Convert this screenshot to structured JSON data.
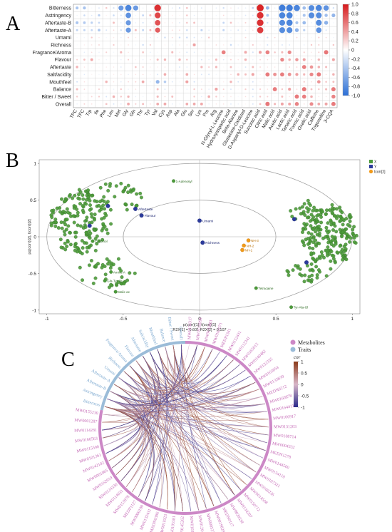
{
  "panels": {
    "a": "A",
    "b": "B",
    "c": "C"
  },
  "chart_data": [
    {
      "type": "heatmap",
      "rows": [
        "Bitterness",
        "Astringency",
        "Aftertaste-B",
        "Aftertaste-A",
        "Umami",
        "Richness",
        "Fragrance/Aroma",
        "Flavour",
        "Aftertaste",
        "Salt/acidity",
        "Mouthfeel",
        "Balance",
        "Bitter / Sweet",
        "Overall"
      ],
      "columns": [
        "TPC",
        "TFC",
        "Trp",
        "Ile",
        "Phe",
        "Leu",
        "Met",
        "Gly",
        "Gln",
        "Thr",
        "Tyr",
        "Val",
        "Cys",
        "Asp",
        "Ala",
        "Glu",
        "Ser",
        "Lys",
        "Pro",
        "Arg",
        "N-Glycyl-L-Leucine",
        "Hydroxyaspartic acid",
        "Beta-Alanine",
        "Glutamine-Oxidized",
        "D-Aspartyl-D-Leucine",
        "Succinic acid",
        "Citric acid",
        "Malic acid",
        "Acetic acid",
        "Lactic acid",
        "Tartaric acid",
        "Formic acid",
        "Oxalic acid",
        "Caffeine",
        "Trigonelline",
        "3-CQA"
      ],
      "colorbar": {
        "ticks": [
          "1.0",
          "0.8",
          "0.6",
          "0.4",
          "0.2",
          "0",
          "-0.2",
          "-0.4",
          "-0.6",
          "-0.8",
          "-1.0"
        ],
        "range": [
          -1,
          1
        ],
        "high_color": "#d7191c",
        "mid_color": "#ffffff",
        "low_color": "#2b6fd6"
      },
      "strong_positive": [
        [
          0,
          11,
          0.9
        ],
        [
          0,
          25,
          0.95
        ],
        [
          1,
          11,
          0.8
        ],
        [
          1,
          25,
          0.9
        ],
        [
          2,
          11,
          0.75
        ],
        [
          2,
          25,
          0.9
        ],
        [
          3,
          11,
          0.7
        ],
        [
          3,
          25,
          0.85
        ],
        [
          5,
          16,
          0.4
        ],
        [
          6,
          20,
          0.55
        ],
        [
          6,
          26,
          0.55
        ],
        [
          7,
          19,
          0.3
        ],
        [
          9,
          24,
          0.4
        ],
        [
          10,
          15,
          0.4
        ],
        [
          11,
          19,
          0.4
        ],
        [
          12,
          18,
          0.35
        ]
      ],
      "strong_negative": [
        [
          0,
          6,
          -0.7
        ],
        [
          0,
          7,
          -0.85
        ],
        [
          0,
          8,
          -0.7
        ],
        [
          0,
          28,
          -0.9
        ],
        [
          0,
          29,
          -0.9
        ],
        [
          0,
          30,
          -0.85
        ],
        [
          0,
          32,
          -0.8
        ],
        [
          0,
          33,
          -0.85
        ],
        [
          0,
          34,
          -0.75
        ],
        [
          1,
          7,
          -0.75
        ],
        [
          1,
          28,
          -0.85
        ],
        [
          1,
          29,
          -0.85
        ],
        [
          1,
          32,
          -0.8
        ],
        [
          1,
          33,
          -0.8
        ],
        [
          2,
          7,
          -0.7
        ],
        [
          2,
          28,
          -0.8
        ],
        [
          2,
          29,
          -0.85
        ],
        [
          2,
          33,
          -0.8
        ],
        [
          3,
          7,
          -0.7
        ],
        [
          3,
          28,
          -0.8
        ],
        [
          3,
          29,
          -0.8
        ],
        [
          3,
          33,
          -0.75
        ],
        [
          10,
          11,
          -0.5
        ],
        [
          10,
          12,
          -0.35
        ]
      ]
    },
    {
      "type": "scatter",
      "xlabel": "p(corr)[1], t(corr)[1]",
      "ylabel": "pq(corr)[2], t(corr)[2]",
      "footer": "R2X[1] = 0.601   R2X[2] = 0.107",
      "xlim": [
        -1.05,
        1.05
      ],
      "ylim": [
        -1.05,
        1.05
      ],
      "xticks": [
        "-1",
        "-0.5",
        "0",
        "0.5",
        "1"
      ],
      "yticks": [
        "1",
        "0.5",
        "0",
        "-0.5",
        "-1"
      ],
      "legend": [
        "X",
        "Y",
        "tcorr[2]"
      ],
      "legend_position": "top-right",
      "ellipses": [
        {
          "rx": 1.0,
          "ry": 1.0
        },
        {
          "rx": 0.5,
          "ry": 0.5
        }
      ],
      "y_points": [
        {
          "x": 0.0,
          "y": 0.22,
          "label": "Umami"
        },
        {
          "x": 0.02,
          "y": -0.08,
          "label": "Richness"
        },
        {
          "x": -0.42,
          "y": 0.38,
          "label": "Aftertaste"
        },
        {
          "x": -0.38,
          "y": 0.29,
          "label": "Flavour"
        },
        {
          "x": -0.6,
          "y": 0.42,
          "label": ""
        },
        {
          "x": -0.72,
          "y": 0.15,
          "label": ""
        },
        {
          "x": 0.62,
          "y": 0.24,
          "label": ""
        },
        {
          "x": 0.7,
          "y": -0.35,
          "label": ""
        }
      ],
      "score_points": [
        {
          "x": 0.32,
          "y": -0.05,
          "label": "NH-3"
        },
        {
          "x": 0.29,
          "y": -0.12,
          "label": "NH-2"
        },
        {
          "x": 0.28,
          "y": -0.18,
          "label": "NH-1"
        }
      ],
      "x_labels": [
        {
          "x": -0.17,
          "y": 0.76,
          "label": "1-Adenosyl"
        },
        {
          "x": -0.7,
          "y": -0.06,
          "label": "Cytidinol"
        },
        {
          "x": -0.58,
          "y": -0.48,
          "label": "Amine A"
        },
        {
          "x": -0.62,
          "y": -0.6,
          "label": "Glu-Tyr-Ile"
        },
        {
          "x": -0.55,
          "y": -0.75,
          "label": "Malic ac"
        },
        {
          "x": 0.37,
          "y": -0.7,
          "label": "Tetracaine"
        },
        {
          "x": 0.6,
          "y": -0.96,
          "label": "Tyr-Ala-Gl"
        }
      ]
    },
    {
      "type": "chord",
      "legend": [
        "Metabolites",
        "Traits"
      ],
      "legend_colors": [
        "#cc88c6",
        "#9bbcd8"
      ],
      "colorbar_title": "cor",
      "colorbar_ticks": [
        "1",
        "0.5",
        "0",
        "-0.5",
        "-1"
      ],
      "traits": [
        "Bitterness",
        "Astringency",
        "Aftertaste-B",
        "Aftertaste-A",
        "Umami",
        "Richness",
        "Fragrance/Aroma",
        "Flavour",
        "Aftertaste",
        "Salt/acidity",
        "Mouthfeel",
        "Balance",
        "Bitter / Sweet",
        "Overall"
      ],
      "metabolites": [
        "MW0154317",
        "MW0153098",
        "MW0135881",
        "MW0162071",
        "MEDP1341",
        "MW0152431",
        "MW0112341",
        "MW0165012",
        "MW0140482",
        "MW0132335",
        "MW0165854",
        "MW0133839",
        "MEDN0212",
        "MW0160878",
        "MW0164411",
        "MW0106917",
        "MW0131203",
        "MW0108714",
        "MW0004332",
        "MEDN1278",
        "MW0144560",
        "MW0154110",
        "MW0107321",
        "MW0160236",
        "MW0014508",
        "MW0150712",
        "MW0134207",
        "MW0020338",
        "MEDN0117",
        "MW0019828",
        "MW0005379",
        "MW0126445",
        "MW0103942",
        "MW0145262",
        "MW0105581",
        "MW0011923",
        "MADN0386",
        "MW0132431",
        "MW0000190",
        "MEDP1127",
        "MW0153978",
        "MW0114031",
        "MW0124330",
        "MW0162019",
        "MW0001065",
        "MW0142102",
        "MW0101361",
        "MW0115590",
        "MW0160563",
        "MW0114281",
        "MW0001287",
        "MW0155230"
      ]
    }
  ]
}
